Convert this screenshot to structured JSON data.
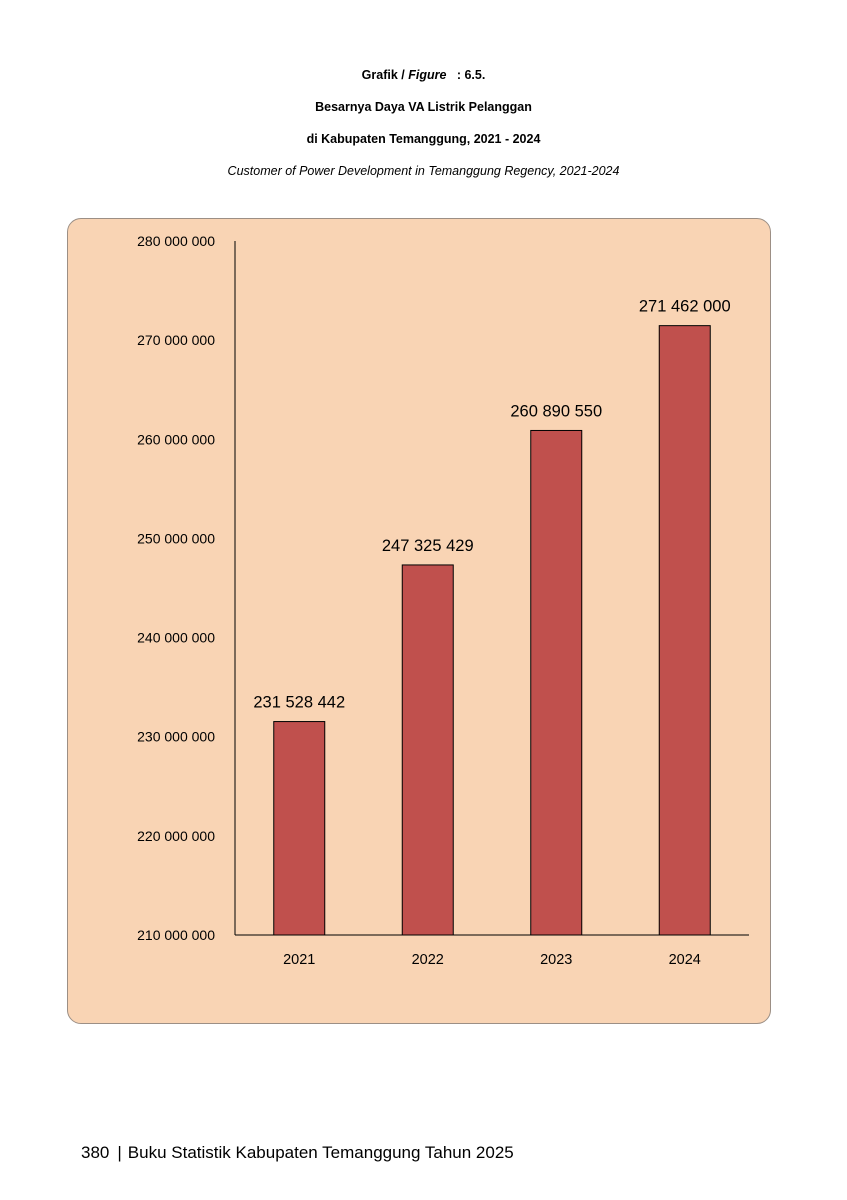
{
  "header": {
    "figure_prefix": "Grafik / ",
    "figure_word": "Figure",
    "figure_number": "   : 6.5.",
    "title_line1": "Besarnya Daya VA Listrik Pelanggan",
    "title_line2": "di Kabupaten Temanggung, 2021 - 2024",
    "subtitle_en": "Customer of Power Development in Temanggung Regency, 2021-2024"
  },
  "chart_data": {
    "type": "bar",
    "categories": [
      "2021",
      "2022",
      "2023",
      "2024"
    ],
    "values": [
      231528442,
      247325429,
      260890550,
      271462000
    ],
    "value_labels": [
      "231 528 442",
      "247 325 429",
      "260 890 550",
      "271 462 000"
    ],
    "ylim": [
      210000000,
      280000000
    ],
    "yticks": [
      210000000,
      220000000,
      230000000,
      240000000,
      250000000,
      260000000,
      270000000,
      280000000
    ],
    "ytick_labels": [
      "210 000 000",
      "220 000 000",
      "230 000 000",
      "240 000 000",
      "250 000 000",
      "260 000 000",
      "270 000 000",
      "280 000 000"
    ],
    "grid": false,
    "legend": "none",
    "title": "",
    "xlabel": "",
    "ylabel": "",
    "bar_color": "#c0504d",
    "panel_color": "#f9d4b4"
  },
  "footer": {
    "page_number": "380",
    "separator": "|",
    "book_title": "Buku Statistik Kabupaten Temanggung Tahun 2025"
  }
}
